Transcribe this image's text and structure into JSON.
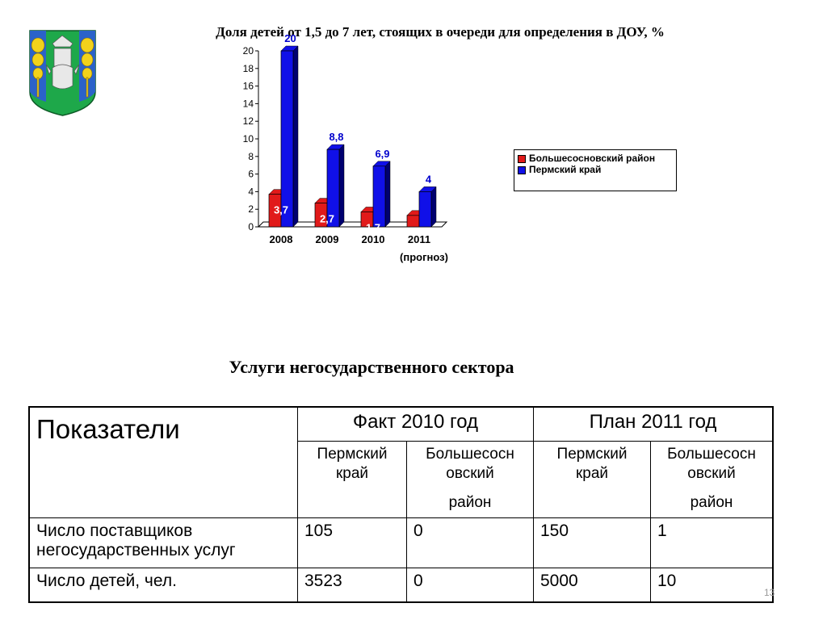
{
  "colors": {
    "district": "#e11a1a",
    "district_side": "#8b0000",
    "region": "#1010e8",
    "region_side": "#000070",
    "region_label": "#0000cc"
  },
  "chart_title": "Доля детей от 1,5 до 7 лет, стоящих в очереди для определения в ДОУ, %",
  "chart_data": {
    "type": "bar",
    "title": "Доля детей от 1,5 до 7 лет, стоящих в очереди для определения в ДОУ, %",
    "categories": [
      "2008",
      "2009",
      "2010",
      "2011"
    ],
    "category_sublabels": [
      "",
      "",
      "",
      "(прогноз)"
    ],
    "series": [
      {
        "name": "Большесосновский район",
        "values": [
          3.7,
          2.7,
          1.7,
          1.3
        ],
        "labels": [
          "3,7",
          "2,7",
          "1,7",
          "1,3"
        ]
      },
      {
        "name": "Пермский край",
        "values": [
          20,
          8.8,
          6.9,
          4
        ],
        "labels": [
          "20",
          "8,8",
          "6,9",
          "4"
        ]
      }
    ],
    "ylim": [
      0,
      20
    ],
    "yticks": [
      0,
      2,
      4,
      6,
      8,
      10,
      12,
      14,
      16,
      18,
      20
    ],
    "legend_position": "right",
    "grid": false
  },
  "legend": {
    "district": "Большесосновский район",
    "region": "Пермский край"
  },
  "section_title": "Услуги негосударственного сектора",
  "table": {
    "header": "Показатели",
    "fact_2010": "Факт 2010 год",
    "plan_2011": "План 2011 год",
    "perm_line1": "Пермский",
    "perm_line2": "край",
    "bs_line1": "Большесосн",
    "bs_line2": "овский",
    "bs_line3": "район",
    "rows": [
      {
        "label": "Число поставщиков негосударственных услуг",
        "values": [
          "105",
          "0",
          "150",
          "1"
        ]
      },
      {
        "label": "Число детей, чел.",
        "values": [
          "3523",
          "0",
          "5000",
          "10"
        ]
      }
    ]
  },
  "page_number": "13"
}
